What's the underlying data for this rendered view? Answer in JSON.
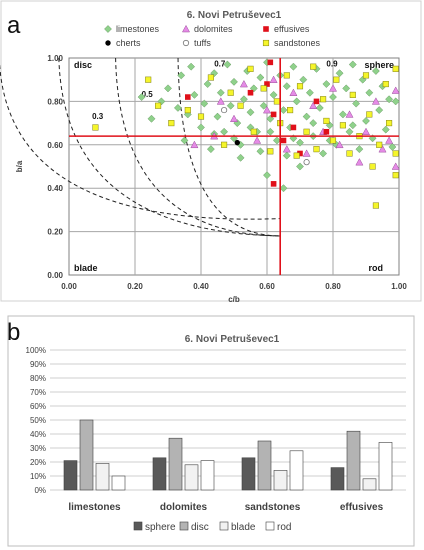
{
  "panels": {
    "a": {
      "letter": "a"
    },
    "b": {
      "letter": "b"
    }
  },
  "colors": {
    "limestones": "#8fd18b",
    "dolomites": "#e58be6",
    "effusives": "#e0101a",
    "cherts": "#000000",
    "tuffs": "#ffffff",
    "sandstones": "#f5f52a",
    "redline": "#e0101a",
    "sphere": "#595959",
    "disc": "#b3b3b3",
    "blade": "#f2f2f2",
    "rod": "#ffffff"
  },
  "chart_data": [
    {
      "type": "scatter",
      "title": "6. Novi Petruševec1",
      "xlabel": "c/b",
      "ylabel": "b/a",
      "xlim": [
        0,
        1
      ],
      "ylim": [
        0,
        1
      ],
      "x_ticks": [
        "0.00",
        "0.20",
        "0.40",
        "0.60",
        "0.80",
        "1.00"
      ],
      "y_ticks": [
        "0.00",
        "0.20",
        "0.40",
        "0.60",
        "0.80",
        "1.00"
      ],
      "grid": true,
      "legend": "top",
      "legend_entries": [
        "limestones",
        "dolomites",
        "effusives",
        "cherts",
        "tuffs",
        "sandstones"
      ],
      "zone_labels": [
        "disc",
        "sphere",
        "blade",
        "rod"
      ],
      "curve_labels": [
        {
          "text": "0.3",
          "x": 0.07,
          "y": 0.72
        },
        {
          "text": "0.5",
          "x": 0.22,
          "y": 0.82
        },
        {
          "text": "0.7",
          "x": 0.44,
          "y": 0.96
        },
        {
          "text": "0.9",
          "x": 0.78,
          "y": 0.96
        }
      ],
      "reference_lines": {
        "x": 0.64,
        "y": 0.64
      },
      "series": [
        {
          "name": "limestones",
          "points": [
            [
              0.22,
              0.82
            ],
            [
              0.25,
              0.72
            ],
            [
              0.28,
              0.8
            ],
            [
              0.3,
              0.86
            ],
            [
              0.33,
              0.77
            ],
            [
              0.34,
              0.92
            ],
            [
              0.35,
              0.62
            ],
            [
              0.36,
              0.74
            ],
            [
              0.37,
              0.96
            ],
            [
              0.38,
              0.83
            ],
            [
              0.4,
              0.68
            ],
            [
              0.41,
              0.79
            ],
            [
              0.42,
              0.88
            ],
            [
              0.43,
              0.58
            ],
            [
              0.44,
              0.93
            ],
            [
              0.45,
              0.73
            ],
            [
              0.46,
              0.84
            ],
            [
              0.47,
              0.66
            ],
            [
              0.48,
              0.97
            ],
            [
              0.49,
              0.78
            ],
            [
              0.5,
              0.89
            ],
            [
              0.51,
              0.7
            ],
            [
              0.52,
              0.6
            ],
            [
              0.53,
              0.81
            ],
            [
              0.54,
              0.94
            ],
            [
              0.55,
              0.75
            ],
            [
              0.56,
              0.86
            ],
            [
              0.57,
              0.66
            ],
            [
              0.58,
              0.57
            ],
            [
              0.58,
              0.91
            ],
            [
              0.59,
              0.78
            ],
            [
              0.6,
              0.98
            ],
            [
              0.61,
              0.72
            ],
            [
              0.62,
              0.83
            ],
            [
              0.63,
              0.62
            ],
            [
              0.64,
              0.92
            ],
            [
              0.65,
              0.76
            ],
            [
              0.66,
              0.55
            ],
            [
              0.66,
              0.87
            ],
            [
              0.67,
              0.68
            ],
            [
              0.68,
              0.96
            ],
            [
              0.69,
              0.8
            ],
            [
              0.7,
              0.61
            ],
            [
              0.71,
              0.9
            ],
            [
              0.72,
              0.73
            ],
            [
              0.73,
              0.84
            ],
            [
              0.74,
              0.64
            ],
            [
              0.75,
              0.95
            ],
            [
              0.76,
              0.77
            ],
            [
              0.77,
              0.56
            ],
            [
              0.78,
              0.88
            ],
            [
              0.79,
              0.69
            ],
            [
              0.8,
              0.82
            ],
            [
              0.81,
              0.6
            ],
            [
              0.82,
              0.93
            ],
            [
              0.83,
              0.74
            ],
            [
              0.84,
              0.86
            ],
            [
              0.85,
              0.66
            ],
            [
              0.86,
              0.97
            ],
            [
              0.87,
              0.79
            ],
            [
              0.88,
              0.58
            ],
            [
              0.89,
              0.9
            ],
            [
              0.9,
              0.71
            ],
            [
              0.91,
              0.84
            ],
            [
              0.92,
              0.63
            ],
            [
              0.93,
              0.94
            ],
            [
              0.94,
              0.76
            ],
            [
              0.95,
              0.87
            ],
            [
              0.96,
              0.67
            ],
            [
              0.97,
              0.81
            ],
            [
              0.98,
              0.59
            ],
            [
              0.99,
              0.8
            ],
            [
              0.44,
              0.65
            ],
            [
              0.5,
              0.63
            ],
            [
              0.55,
              0.68
            ],
            [
              0.61,
              0.66
            ],
            [
              0.68,
              0.63
            ],
            [
              0.74,
              0.7
            ],
            [
              0.79,
              0.62
            ],
            [
              0.86,
              0.69
            ],
            [
              0.65,
              0.4
            ],
            [
              0.6,
              0.46
            ],
            [
              0.7,
              0.5
            ],
            [
              0.52,
              0.54
            ]
          ]
        },
        {
          "name": "dolomites",
          "points": [
            [
              0.38,
              0.6
            ],
            [
              0.44,
              0.64
            ],
            [
              0.46,
              0.8
            ],
            [
              0.5,
              0.72
            ],
            [
              0.53,
              0.88
            ],
            [
              0.57,
              0.62
            ],
            [
              0.6,
              0.76
            ],
            [
              0.62,
              0.9
            ],
            [
              0.66,
              0.58
            ],
            [
              0.68,
              0.84
            ],
            [
              0.72,
              0.56
            ],
            [
              0.74,
              0.78
            ],
            [
              0.77,
              0.66
            ],
            [
              0.8,
              0.86
            ],
            [
              0.82,
              0.6
            ],
            [
              0.85,
              0.74
            ],
            [
              0.88,
              0.52
            ],
            [
              0.9,
              0.66
            ],
            [
              0.93,
              0.8
            ],
            [
              0.95,
              0.58
            ],
            [
              0.97,
              0.62
            ],
            [
              0.99,
              0.85
            ],
            [
              0.99,
              0.5
            ]
          ]
        },
        {
          "name": "effusives",
          "points": [
            [
              0.36,
              0.82
            ],
            [
              0.55,
              0.84
            ],
            [
              0.6,
              0.88
            ],
            [
              0.61,
              0.98
            ],
            [
              0.62,
              0.74
            ],
            [
              0.62,
              0.42
            ],
            [
              0.65,
              0.62
            ],
            [
              0.68,
              0.68
            ],
            [
              0.7,
              0.56
            ],
            [
              0.75,
              0.8
            ],
            [
              0.78,
              0.66
            ]
          ]
        },
        {
          "name": "cherts",
          "points": [
            [
              0.51,
              0.61
            ]
          ]
        },
        {
          "name": "tuffs",
          "points": [
            [
              0.47,
              0.76
            ],
            [
              0.72,
              0.52
            ]
          ]
        },
        {
          "name": "sandstones",
          "points": [
            [
              0.08,
              0.68
            ],
            [
              0.24,
              0.9
            ],
            [
              0.27,
              0.78
            ],
            [
              0.31,
              0.7
            ],
            [
              0.36,
              0.76
            ],
            [
              0.4,
              0.73
            ],
            [
              0.43,
              0.91
            ],
            [
              0.47,
              0.6
            ],
            [
              0.49,
              0.84
            ],
            [
              0.52,
              0.78
            ],
            [
              0.55,
              0.95
            ],
            [
              0.56,
              0.66
            ],
            [
              0.59,
              0.86
            ],
            [
              0.61,
              0.57
            ],
            [
              0.63,
              0.8
            ],
            [
              0.64,
              0.7
            ],
            [
              0.66,
              0.92
            ],
            [
              0.67,
              0.76
            ],
            [
              0.69,
              0.55
            ],
            [
              0.7,
              0.87
            ],
            [
              0.72,
              0.66
            ],
            [
              0.74,
              0.96
            ],
            [
              0.75,
              0.58
            ],
            [
              0.77,
              0.81
            ],
            [
              0.78,
              0.71
            ],
            [
              0.8,
              0.62
            ],
            [
              0.81,
              0.9
            ],
            [
              0.83,
              0.69
            ],
            [
              0.85,
              0.56
            ],
            [
              0.86,
              0.83
            ],
            [
              0.88,
              0.64
            ],
            [
              0.9,
              0.92
            ],
            [
              0.91,
              0.74
            ],
            [
              0.92,
              0.5
            ],
            [
              0.94,
              0.6
            ],
            [
              0.96,
              0.88
            ],
            [
              0.97,
              0.7
            ],
            [
              0.99,
              0.95
            ],
            [
              0.99,
              0.56
            ],
            [
              0.99,
              0.46
            ],
            [
              0.93,
              0.32
            ]
          ]
        }
      ]
    },
    {
      "type": "bar",
      "title": "6. Novi Petruševec1",
      "categories": [
        "limestones",
        "dolomites",
        "sandstones",
        "effusives"
      ],
      "ylim": [
        0,
        100
      ],
      "y_ticks": [
        "0%",
        "10%",
        "20%",
        "30%",
        "40%",
        "50%",
        "60%",
        "70%",
        "80%",
        "90%",
        "100%"
      ],
      "grid": true,
      "legend": "bottom",
      "series": [
        {
          "name": "sphere",
          "values": [
            21,
            23,
            23,
            16
          ]
        },
        {
          "name": "disc",
          "values": [
            50,
            37,
            35,
            42
          ]
        },
        {
          "name": "blade",
          "values": [
            19,
            18,
            14,
            8
          ]
        },
        {
          "name": "rod",
          "values": [
            10,
            21,
            28,
            34
          ]
        }
      ]
    }
  ]
}
